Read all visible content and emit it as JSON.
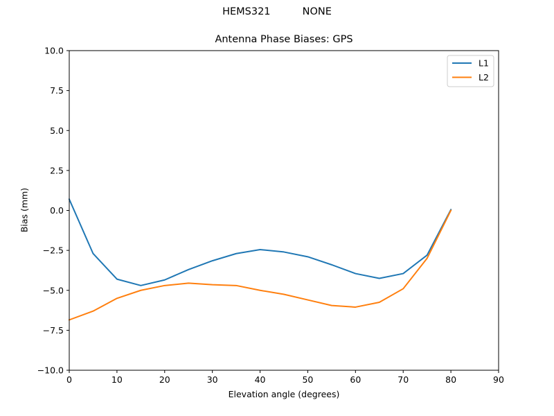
{
  "figure": {
    "suptitle": "HEMS321          NONE",
    "title": "Antenna Phase Biases: GPS",
    "xlabel": "Elevation angle (degrees)",
    "ylabel": "Bias (mm)"
  },
  "colors": {
    "L1": "#1f77b4",
    "L2": "#ff7f0e",
    "axes": "#000000",
    "legend_border": "#cccccc"
  },
  "legend": {
    "position": "upper right",
    "entries": [
      {
        "label": "L1",
        "color": "#1f77b4"
      },
      {
        "label": "L2",
        "color": "#ff7f0e"
      }
    ]
  },
  "chart_data": {
    "type": "line",
    "title": "Antenna Phase Biases: GPS",
    "suptitle": "HEMS321          NONE",
    "xlabel": "Elevation angle (degrees)",
    "ylabel": "Bias (mm)",
    "xlim": [
      0,
      90
    ],
    "ylim": [
      -10,
      10
    ],
    "xticks": [
      0,
      10,
      20,
      30,
      40,
      50,
      60,
      70,
      80,
      90
    ],
    "yticks": [
      -10.0,
      -7.5,
      -5.0,
      -2.5,
      0.0,
      2.5,
      5.0,
      7.5,
      10.0
    ],
    "xtick_labels": [
      "0",
      "10",
      "20",
      "30",
      "40",
      "50",
      "60",
      "70",
      "80",
      "90"
    ],
    "ytick_labels": [
      "−10.0",
      "−7.5",
      "−5.0",
      "−2.5",
      "0.0",
      "2.5",
      "5.0",
      "7.5",
      "10.0"
    ],
    "grid": false,
    "legend_position": "upper right",
    "x": [
      0,
      5,
      10,
      15,
      20,
      25,
      30,
      35,
      40,
      45,
      50,
      55,
      60,
      65,
      70,
      75,
      80
    ],
    "series": [
      {
        "name": "L1",
        "color": "#1f77b4",
        "values": [
          0.7,
          -2.7,
          -4.3,
          -4.7,
          -4.35,
          -3.7,
          -3.15,
          -2.7,
          -2.45,
          -2.6,
          -2.9,
          -3.4,
          -3.95,
          -4.25,
          -3.95,
          -2.8,
          0.05
        ]
      },
      {
        "name": "L2",
        "color": "#ff7f0e",
        "values": [
          -6.85,
          -6.3,
          -5.5,
          -5.0,
          -4.7,
          -4.55,
          -4.65,
          -4.7,
          -5.0,
          -5.25,
          -5.6,
          -5.95,
          -6.05,
          -5.75,
          -4.9,
          -3.0,
          0.0
        ]
      }
    ]
  }
}
